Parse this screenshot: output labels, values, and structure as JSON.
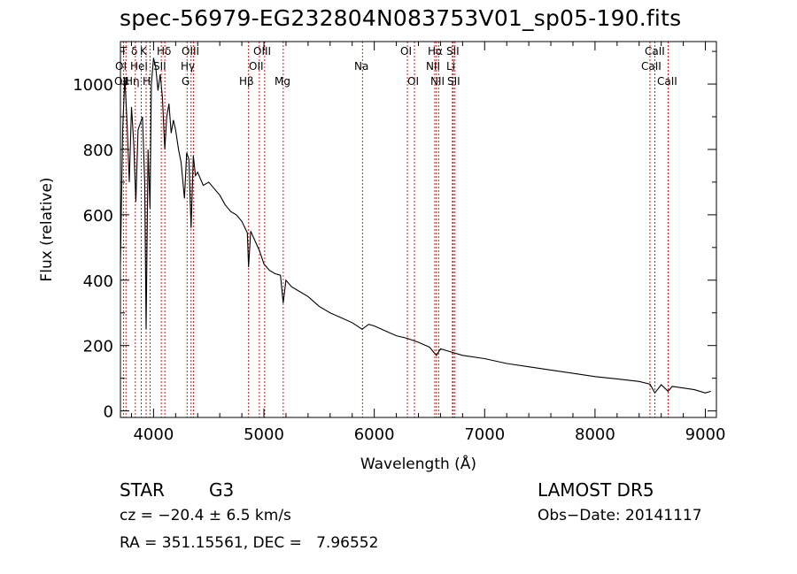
{
  "chart_data": {
    "type": "line",
    "title": "spec-56979-EG232804N083753V01_sp05-190.fits",
    "xlabel": "Wavelength (Å)",
    "ylabel": "Flux (relative)",
    "xlim": [
      3700,
      9100
    ],
    "ylim": [
      -20,
      1130
    ],
    "xticks": [
      4000,
      5000,
      6000,
      7000,
      8000,
      9000
    ],
    "yticks": [
      0,
      200,
      400,
      600,
      800,
      1000
    ],
    "grid": false,
    "series": [
      {
        "x": [
          3700,
          3720,
          3740,
          3760,
          3780,
          3800,
          3820,
          3840,
          3860,
          3880,
          3900,
          3920,
          3933,
          3950,
          3968,
          3980,
          4000,
          4020,
          4040,
          4060,
          4080,
          4102,
          4120,
          4140,
          4160,
          4180,
          4200,
          4226,
          4250,
          4280,
          4300,
          4320,
          4340,
          4360,
          4380,
          4400,
          4450,
          4500,
          4550,
          4600,
          4650,
          4700,
          4750,
          4800,
          4850,
          4861,
          4880,
          4920,
          4960,
          5000,
          5050,
          5100,
          5150,
          5175,
          5200,
          5250,
          5300,
          5400,
          5500,
          5600,
          5700,
          5800,
          5890,
          5950,
          6000,
          6100,
          6200,
          6300,
          6400,
          6500,
          6563,
          6600,
          6700,
          6800,
          7000,
          7200,
          7400,
          7600,
          7800,
          8000,
          8200,
          8400,
          8498,
          8542,
          8600,
          8662,
          8700,
          8800,
          8900,
          9000,
          9050
        ],
        "y": [
          450,
          860,
          1020,
          880,
          700,
          930,
          820,
          640,
          860,
          880,
          900,
          700,
          250,
          800,
          620,
          1000,
          1080,
          1050,
          980,
          1030,
          960,
          800,
          900,
          940,
          850,
          890,
          860,
          800,
          760,
          650,
          790,
          770,
          560,
          780,
          720,
          730,
          690,
          700,
          680,
          660,
          630,
          610,
          600,
          580,
          545,
          440,
          550,
          520,
          490,
          450,
          430,
          420,
          415,
          330,
          400,
          380,
          370,
          350,
          320,
          300,
          285,
          270,
          250,
          265,
          260,
          245,
          230,
          222,
          210,
          195,
          170,
          190,
          180,
          170,
          160,
          145,
          135,
          125,
          115,
          105,
          98,
          90,
          82,
          55,
          80,
          60,
          75,
          70,
          65,
          55,
          60
        ]
      }
    ],
    "lines_row1": [
      "T",
      "δ",
      "K",
      "Hδ",
      "OIII",
      "OIII",
      "OI",
      "Hα",
      "SII",
      "CaII"
    ],
    "lines_row2": [
      "OI",
      "HeI",
      "SII",
      "Hγ",
      "OII",
      "Na",
      "NII",
      "Li",
      "CaII"
    ],
    "lines_row3": [
      "OII",
      "Hη",
      "H",
      "G",
      "Hβ",
      "Mg",
      "OI",
      "NII",
      "SII",
      "CaII"
    ],
    "markers": [
      {
        "wave": 3727,
        "label": "OII"
      },
      {
        "wave": 3750,
        "label": "T"
      },
      {
        "wave": 3835,
        "label": "Hη"
      },
      {
        "wave": 3889,
        "label": "HeI"
      },
      {
        "wave": 3933,
        "label": "K"
      },
      {
        "wave": 3968,
        "label": "H"
      },
      {
        "wave": 4070,
        "label": "SII"
      },
      {
        "wave": 4102,
        "label": "Hδ"
      },
      {
        "wave": 4304,
        "label": "G"
      },
      {
        "wave": 4340,
        "label": "Hγ"
      },
      {
        "wave": 4363,
        "label": "OIII"
      },
      {
        "wave": 4861,
        "label": "Hβ"
      },
      {
        "wave": 4959,
        "label": "OIII"
      },
      {
        "wave": 5007,
        "label": "OIII"
      },
      {
        "wave": 5175,
        "label": "Mg"
      },
      {
        "wave": 5893,
        "label": "Na"
      },
      {
        "wave": 6300,
        "label": "OI"
      },
      {
        "wave": 6364,
        "label": "OI"
      },
      {
        "wave": 6548,
        "label": "NII"
      },
      {
        "wave": 6563,
        "label": "Hα"
      },
      {
        "wave": 6583,
        "label": "NII"
      },
      {
        "wave": 6708,
        "label": "Li"
      },
      {
        "wave": 6716,
        "label": "SII"
      },
      {
        "wave": 6731,
        "label": "SII"
      },
      {
        "wave": 8498,
        "label": "CaII"
      },
      {
        "wave": 8542,
        "label": "CaII"
      },
      {
        "wave": 8662,
        "label": "CaII"
      }
    ]
  },
  "info": {
    "class_label": "STAR",
    "subclass_label": "G3",
    "survey": "LAMOST DR5",
    "cz_text": "cz = −20.4 ± 6.5 km/s",
    "obs_date": "Obs−Date: 20141117",
    "radec": "RA = 351.15561, DEC =   7.96552"
  },
  "colors": {
    "marker_line": "#cc0000",
    "spectrum": "#000000",
    "axis": "#000000"
  }
}
